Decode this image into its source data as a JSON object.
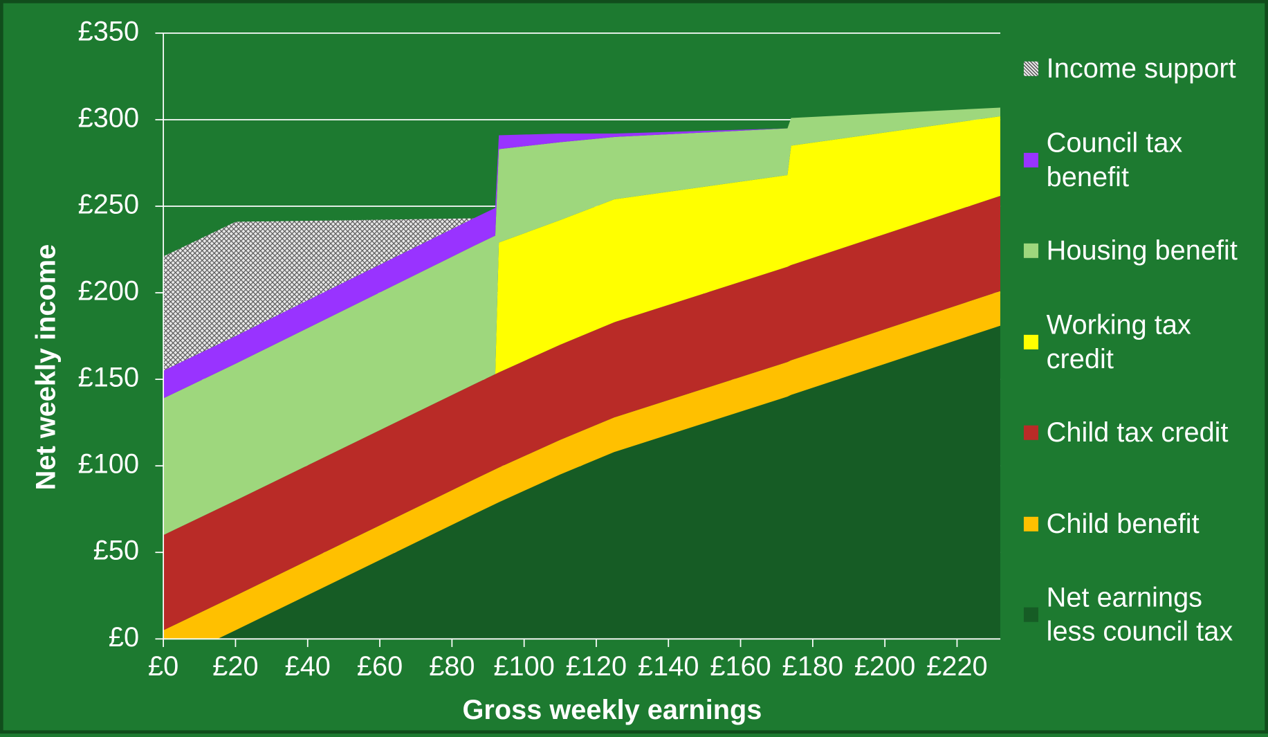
{
  "chart_data": {
    "type": "stacked-area",
    "x_label": "Gross weekly earnings",
    "y_label": "Net weekly income",
    "x": [
      0,
      20,
      86,
      92,
      93,
      110,
      125,
      173,
      174,
      232
    ],
    "series": [
      {
        "name": "Net earnings less council tax",
        "color": "#165c25",
        "values": [
          -15,
          5,
          72,
          78,
          79,
          95,
          108,
          140,
          141,
          181
        ]
      },
      {
        "name": "Child benefit",
        "color": "#ffc000",
        "values": [
          20,
          20,
          20,
          20,
          20,
          20,
          20,
          20,
          20,
          20
        ]
      },
      {
        "name": "Child tax credit",
        "color": "#b92b27",
        "values": [
          55,
          55,
          55,
          55,
          55,
          55,
          55,
          55,
          55,
          55
        ]
      },
      {
        "name": "Working tax credit",
        "color": "#ffff00",
        "values": [
          0,
          0,
          0,
          0,
          75,
          72,
          71,
          53,
          69,
          46
        ]
      },
      {
        "name": "Housing benefit",
        "color": "#9ed77d",
        "values": [
          79,
          79,
          80,
          80,
          54,
          45,
          36,
          27,
          16,
          5
        ]
      },
      {
        "name": "Council tax benefit",
        "color": "#9933ff",
        "values": [
          16,
          16,
          16,
          16,
          8,
          5,
          2,
          0,
          0,
          0
        ]
      },
      {
        "name": "Income support",
        "color": "#b8b8b8",
        "hatch": true,
        "values": [
          66,
          66,
          0,
          0,
          0,
          0,
          0,
          0,
          0,
          0
        ]
      }
    ],
    "xlim": [
      0,
      232
    ],
    "ylim": [
      0,
      350
    ],
    "xticks": [
      {
        "value": 0,
        "label": "£0"
      },
      {
        "value": 20,
        "label": "£20"
      },
      {
        "value": 40,
        "label": "£40"
      },
      {
        "value": 60,
        "label": "£60"
      },
      {
        "value": 80,
        "label": "£80"
      },
      {
        "value": 100,
        "label": "£100"
      },
      {
        "value": 120,
        "label": "£120"
      },
      {
        "value": 140,
        "label": "£140"
      },
      {
        "value": 160,
        "label": "£160"
      },
      {
        "value": 180,
        "label": "£180"
      },
      {
        "value": 200,
        "label": "£200"
      },
      {
        "value": 220,
        "label": "£220"
      }
    ],
    "yticks": [
      {
        "value": 0,
        "label": "£0"
      },
      {
        "value": 50,
        "label": "£50"
      },
      {
        "value": 100,
        "label": "£100"
      },
      {
        "value": 150,
        "label": "£150"
      },
      {
        "value": 200,
        "label": "£200"
      },
      {
        "value": 250,
        "label": "£250"
      },
      {
        "value": 300,
        "label": "£300"
      },
      {
        "value": 350,
        "label": "£350"
      }
    ],
    "grid": true,
    "legend": "right"
  }
}
